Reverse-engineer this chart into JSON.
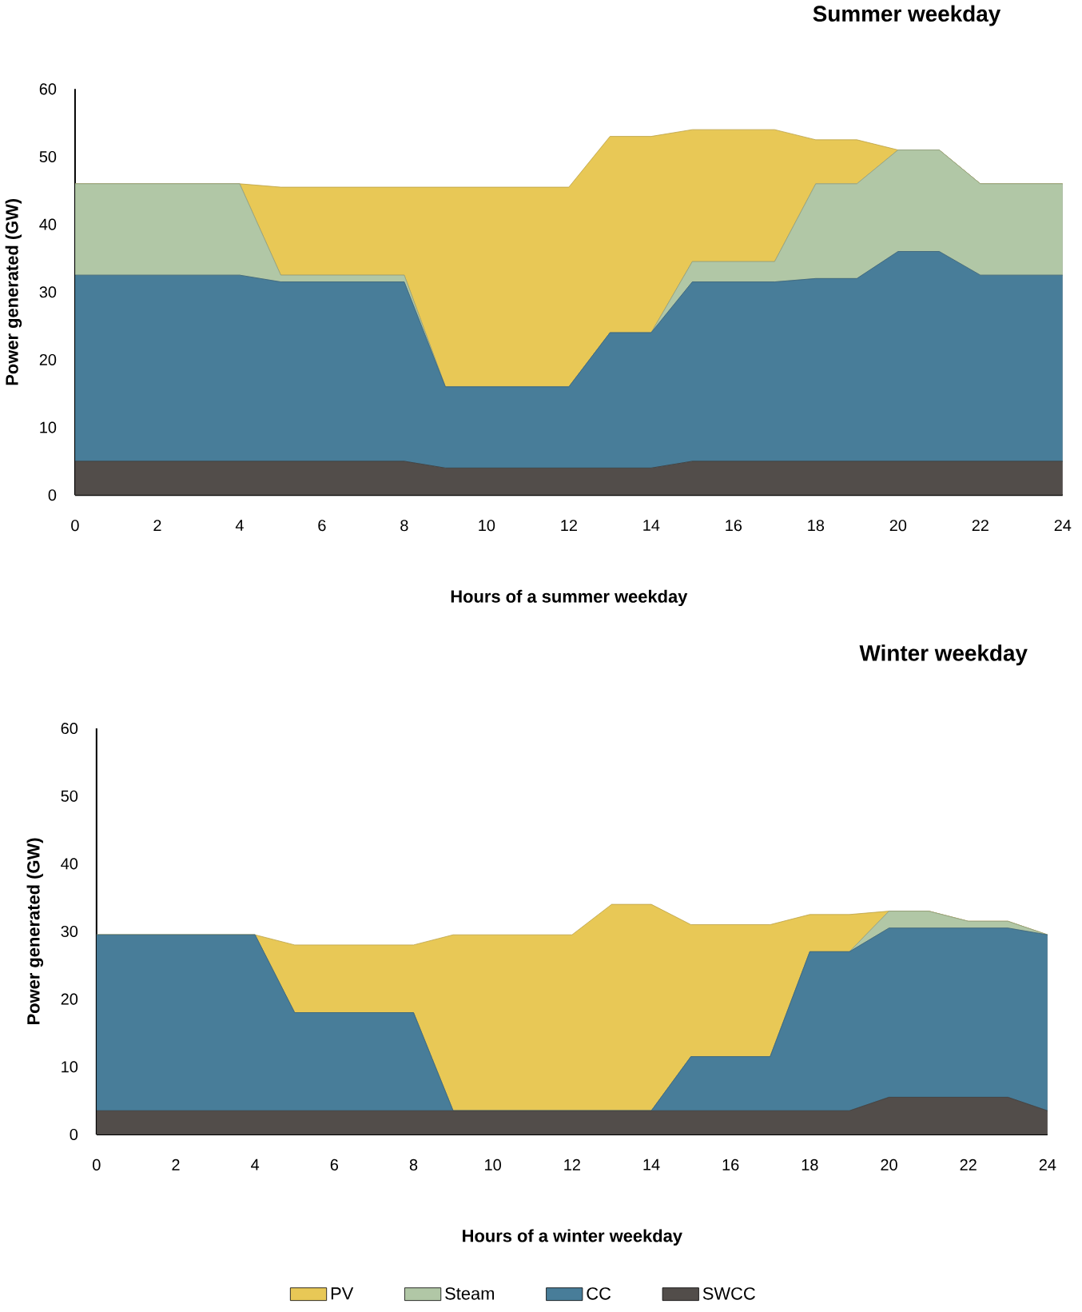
{
  "chart_data": [
    {
      "type": "area",
      "title": "Summer weekday",
      "xlabel": "Hours of a summer weekday",
      "ylabel": "Power generated  (GW)",
      "stacked": true,
      "x": [
        0,
        1,
        2,
        3,
        4,
        5,
        6,
        7,
        8,
        9,
        10,
        11,
        12,
        13,
        14,
        15,
        16,
        17,
        18,
        19,
        20,
        21,
        22,
        23,
        24
      ],
      "xlim": [
        0,
        24
      ],
      "xticks": [
        0,
        2,
        4,
        6,
        8,
        10,
        12,
        14,
        16,
        18,
        20,
        22,
        24
      ],
      "ylim": [
        0,
        60
      ],
      "yticks": [
        0,
        10,
        20,
        30,
        40,
        50,
        60
      ],
      "series": [
        {
          "color": "#524d4a",
          "values": [
            5,
            5,
            5,
            5,
            5,
            5,
            5,
            5,
            5,
            4,
            4,
            4,
            4,
            4,
            4,
            5,
            5,
            5,
            5,
            5,
            5,
            5,
            5,
            5,
            5
          ]
        },
        {
          "color": "#487d99",
          "values": [
            27.5,
            27.5,
            27.5,
            27.5,
            27.5,
            26.5,
            26.5,
            26.5,
            26.5,
            12,
            12,
            12,
            12,
            20,
            20,
            26.5,
            26.5,
            26.5,
            27,
            27,
            31,
            31,
            27.5,
            27.5,
            27.5
          ]
        },
        {
          "color": "#b1c7a6",
          "values": [
            13.5,
            13.5,
            13.5,
            13.5,
            13.5,
            1,
            1,
            1,
            1,
            0,
            0,
            0,
            0,
            0,
            0,
            3,
            3,
            3,
            14,
            14,
            15,
            15,
            13.5,
            13.5,
            13.5
          ]
        },
        {
          "color": "#e8c856",
          "values": [
            0,
            0,
            0,
            0,
            0,
            13,
            13,
            13,
            13,
            29.5,
            29.5,
            29.5,
            29.5,
            29,
            29,
            19.5,
            19.5,
            19.5,
            6.5,
            6.5,
            0,
            0,
            0,
            0,
            0
          ]
        }
      ]
    },
    {
      "type": "area",
      "title": "Winter weekday",
      "xlabel": "Hours of a winter weekday",
      "ylabel": "Power generated  (GW)",
      "stacked": true,
      "legend": "bottom",
      "x": [
        0,
        1,
        2,
        3,
        4,
        5,
        6,
        7,
        8,
        9,
        10,
        11,
        12,
        13,
        14,
        15,
        16,
        17,
        18,
        19,
        20,
        21,
        22,
        23,
        24
      ],
      "xlim": [
        0,
        24
      ],
      "xticks": [
        0,
        2,
        4,
        6,
        8,
        10,
        12,
        14,
        16,
        18,
        20,
        22,
        24
      ],
      "ylim": [
        0,
        60
      ],
      "yticks": [
        0,
        10,
        20,
        30,
        40,
        50,
        60
      ],
      "series": [
        {
          "name": "SWCC",
          "color": "#524d4a",
          "values": [
            3.5,
            3.5,
            3.5,
            3.5,
            3.5,
            3.5,
            3.5,
            3.5,
            3.5,
            3.5,
            3.5,
            3.5,
            3.5,
            3.5,
            3.5,
            3.5,
            3.5,
            3.5,
            3.5,
            3.5,
            5.5,
            5.5,
            5.5,
            5.5,
            3.5
          ]
        },
        {
          "name": "CC",
          "color": "#487d99",
          "values": [
            26,
            26,
            26,
            26,
            26,
            14.5,
            14.5,
            14.5,
            14.5,
            0,
            0,
            0,
            0,
            0,
            0,
            8,
            8,
            8,
            23.5,
            23.5,
            25,
            25,
            25,
            25,
            26
          ]
        },
        {
          "name": "Steam",
          "color": "#b1c7a6",
          "values": [
            0,
            0,
            0,
            0,
            0,
            0,
            0,
            0,
            0,
            0,
            0,
            0,
            0,
            0,
            0,
            0,
            0,
            0,
            0,
            0,
            2.5,
            2.5,
            1,
            1,
            0
          ]
        },
        {
          "name": "PV",
          "color": "#e8c856",
          "values": [
            0,
            0,
            0,
            0,
            0,
            10,
            10,
            10,
            10,
            26,
            26,
            26,
            26,
            30.5,
            30.5,
            19.5,
            19.5,
            19.5,
            5.5,
            5.5,
            0,
            0,
            0,
            0,
            0
          ]
        }
      ]
    }
  ]
}
